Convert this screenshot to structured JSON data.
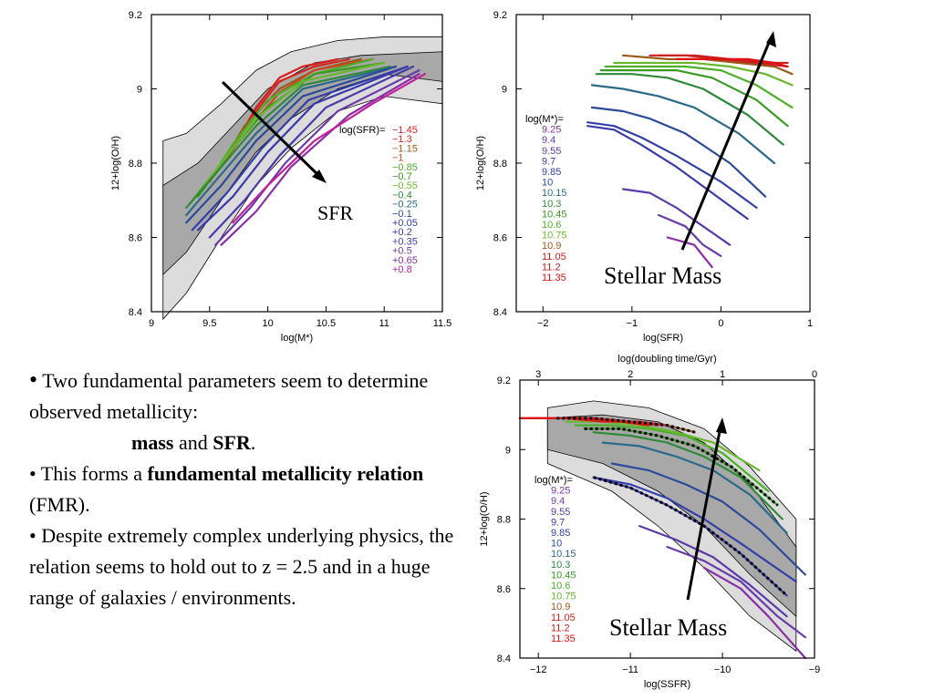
{
  "slide": {
    "bullets": {
      "b1_lead": "•",
      "b1_text": " Two fundamental parameters seem to determine observed metallicity:",
      "b1_mass": "mass",
      "b1_and": " and ",
      "b1_sfr": "SFR",
      "b1_end": ".",
      "b2_prefix": "• This forms a ",
      "b2_bold": "fundamental metallicity relation",
      "b2_suffix": " (FMR).",
      "b3": "• Despite extremely complex underlying physics, the relation seems to hold out to z = 2.5 and in a huge range of galaxies / environments."
    }
  },
  "chart_data": [
    {
      "id": "panel1",
      "type": "line",
      "xlabel": "log(M*)",
      "ylabel": "12+log(O/H)",
      "xlim": [
        9.0,
        11.5
      ],
      "ylim": [
        8.4,
        9.2
      ],
      "xticks": [
        9,
        9.5,
        10,
        10.5,
        11,
        11.5
      ],
      "yticks": [
        8.4,
        8.6,
        8.8,
        9,
        9.2
      ],
      "legend_title": "log(SFR)=",
      "legend_placement": "right",
      "annotation": "SFR",
      "series": [
        {
          "name": "−1.45",
          "color": "#d11f1f",
          "x": [
            9.7,
            9.9,
            10.1,
            10.3,
            10.6
          ],
          "y": [
            8.84,
            8.95,
            9.03,
            9.06,
            9.08
          ]
        },
        {
          "name": "−1.3",
          "color": "#d4261d",
          "x": [
            9.6,
            9.9,
            10.1,
            10.4,
            10.7
          ],
          "y": [
            8.8,
            8.94,
            9.02,
            9.06,
            9.08
          ]
        },
        {
          "name": "−1.15",
          "color": "#9a5a1a",
          "x": [
            9.55,
            9.8,
            10.1,
            10.4,
            10.8
          ],
          "y": [
            8.77,
            8.9,
            9.0,
            9.05,
            9.08
          ]
        },
        {
          "name": "−1",
          "color": "#c74a22",
          "x": [
            9.5,
            9.8,
            10.1,
            10.4,
            10.9
          ],
          "y": [
            8.75,
            8.88,
            8.99,
            9.05,
            9.08
          ]
        },
        {
          "name": "−0.85",
          "color": "#4caf2a",
          "x": [
            9.45,
            9.7,
            10.0,
            10.4,
            10.9
          ],
          "y": [
            8.73,
            8.85,
            8.97,
            9.04,
            9.08
          ]
        },
        {
          "name": "−0.7",
          "color": "#3a9a22",
          "x": [
            9.4,
            9.7,
            10.0,
            10.4,
            11.0
          ],
          "y": [
            8.71,
            8.84,
            8.95,
            9.04,
            9.07
          ]
        },
        {
          "name": "−0.55",
          "color": "#6ab82e",
          "x": [
            9.35,
            9.6,
            9.9,
            10.3,
            11.0
          ],
          "y": [
            8.7,
            8.8,
            8.92,
            9.02,
            9.07
          ]
        },
        {
          "name": "−0.4",
          "color": "#2e8a3a",
          "x": [
            9.3,
            9.6,
            9.9,
            10.3,
            11.05
          ],
          "y": [
            8.68,
            8.79,
            8.9,
            9.01,
            9.06
          ]
        },
        {
          "name": "−0.25",
          "color": "#2b6a8a",
          "x": [
            9.3,
            9.6,
            9.9,
            10.3,
            11.1
          ],
          "y": [
            8.66,
            8.77,
            8.88,
            9.0,
            9.06
          ]
        },
        {
          "name": "−0.1",
          "color": "#2a4a9a",
          "x": [
            9.3,
            9.6,
            9.9,
            10.3,
            11.1
          ],
          "y": [
            8.64,
            8.74,
            8.86,
            8.98,
            9.06
          ]
        },
        {
          "name": "+0.05",
          "color": "#3340a8",
          "x": [
            9.35,
            9.65,
            9.95,
            10.35,
            11.2
          ],
          "y": [
            8.62,
            8.72,
            8.84,
            8.97,
            9.06
          ]
        },
        {
          "name": "+0.2",
          "color": "#3a3aa8",
          "x": [
            9.4,
            9.7,
            10.0,
            10.4,
            11.2
          ],
          "y": [
            8.62,
            8.71,
            8.83,
            8.96,
            9.06
          ]
        },
        {
          "name": "+0.35",
          "color": "#4a3aa8",
          "x": [
            9.5,
            9.8,
            10.1,
            10.5,
            11.25
          ],
          "y": [
            8.6,
            8.7,
            8.82,
            8.95,
            9.06
          ]
        },
        {
          "name": "+0.5",
          "color": "#6a3aa8",
          "x": [
            9.55,
            9.85,
            10.15,
            10.6,
            11.3
          ],
          "y": [
            8.58,
            8.68,
            8.8,
            8.94,
            9.05
          ]
        },
        {
          "name": "+0.65",
          "color": "#8a2ea8",
          "x": [
            9.6,
            9.9,
            10.2,
            10.7,
            11.3
          ],
          "y": [
            8.58,
            8.67,
            8.79,
            8.93,
            9.04
          ]
        },
        {
          "name": "+0.8",
          "color": "#c0229a",
          "x": [
            9.7,
            10.0,
            10.4,
            10.9,
            11.35
          ],
          "y": [
            8.64,
            8.74,
            8.86,
            8.96,
            9.04
          ]
        }
      ]
    },
    {
      "id": "panel2",
      "type": "line",
      "xlabel": "log(SFR)",
      "ylabel": "12+log(O/H)",
      "xlim": [
        -2.3,
        1.0
      ],
      "ylim": [
        8.4,
        9.2
      ],
      "xticks": [
        -2,
        -1,
        0,
        1
      ],
      "yticks": [
        8.4,
        8.6,
        8.8,
        9,
        9.2
      ],
      "legend_title": "log(M*)=",
      "legend_placement": "top-left",
      "annotation": "Stellar Mass",
      "series": [
        {
          "name": "9.25",
          "color": "#8a2ea8",
          "x": [
            -0.6,
            -0.3,
            -0.1
          ],
          "y": [
            8.6,
            8.58,
            8.52
          ]
        },
        {
          "name": "9.4",
          "color": "#6a3aa8",
          "x": [
            -0.7,
            -0.4,
            -0.2,
            0.0
          ],
          "y": [
            8.66,
            8.63,
            8.58,
            8.55
          ]
        },
        {
          "name": "9.55",
          "color": "#5a3aa8",
          "x": [
            -1.1,
            -0.8,
            -0.5,
            -0.2,
            0.1
          ],
          "y": [
            8.73,
            8.72,
            8.68,
            8.63,
            8.58
          ]
        },
        {
          "name": "9.7",
          "color": "#3a3aa8",
          "x": [
            -1.5,
            -1.2,
            -0.9,
            -0.5,
            -0.1,
            0.3
          ],
          "y": [
            8.9,
            8.89,
            8.85,
            8.79,
            8.72,
            8.65
          ]
        },
        {
          "name": "9.85",
          "color": "#3340a8",
          "x": [
            -1.5,
            -1.2,
            -0.9,
            -0.5,
            0.0,
            0.4
          ],
          "y": [
            8.91,
            8.9,
            8.87,
            8.82,
            8.75,
            8.68
          ]
        },
        {
          "name": "10",
          "color": "#2a4a9a",
          "x": [
            -1.45,
            -1.1,
            -0.8,
            -0.4,
            0.1,
            0.5
          ],
          "y": [
            8.95,
            8.94,
            8.92,
            8.88,
            8.8,
            8.71
          ]
        },
        {
          "name": "10.15",
          "color": "#2b6a8a",
          "x": [
            -1.45,
            -1.1,
            -0.7,
            -0.3,
            0.2,
            0.6
          ],
          "y": [
            9.01,
            9.0,
            8.98,
            8.95,
            8.88,
            8.8
          ]
        },
        {
          "name": "10.3",
          "color": "#2e8a3a",
          "x": [
            -1.4,
            -1.0,
            -0.6,
            -0.2,
            0.3,
            0.7
          ],
          "y": [
            9.04,
            9.04,
            9.03,
            9.0,
            8.93,
            8.85
          ]
        },
        {
          "name": "10.45",
          "color": "#3a9a22",
          "x": [
            -1.35,
            -0.95,
            -0.5,
            -0.1,
            0.4,
            0.75
          ],
          "y": [
            9.05,
            9.05,
            9.05,
            9.03,
            8.97,
            8.9
          ]
        },
        {
          "name": "10.6",
          "color": "#4caf2a",
          "x": [
            -1.3,
            -0.9,
            -0.4,
            0.0,
            0.4,
            0.8
          ],
          "y": [
            9.06,
            9.06,
            9.06,
            9.05,
            9.01,
            8.95
          ]
        },
        {
          "name": "10.75",
          "color": "#6ab82e",
          "x": [
            -1.2,
            -0.8,
            -0.3,
            0.1,
            0.5,
            0.8
          ],
          "y": [
            9.07,
            9.07,
            9.07,
            9.06,
            9.04,
            9.01
          ]
        },
        {
          "name": "10.9",
          "color": "#9a5a1a",
          "x": [
            -1.1,
            -0.6,
            -0.2,
            0.2,
            0.6,
            0.8
          ],
          "y": [
            9.09,
            9.08,
            9.08,
            9.07,
            9.06,
            9.04
          ]
        },
        {
          "name": "11.05",
          "color": "#d11f1f",
          "x": [
            -0.8,
            -0.4,
            0.0,
            0.4,
            0.75
          ],
          "y": [
            9.09,
            9.09,
            9.08,
            9.07,
            9.06
          ]
        },
        {
          "name": "11.2",
          "color": "#c82020",
          "x": [
            -0.7,
            -0.3,
            0.1,
            0.5,
            0.75
          ],
          "y": [
            9.09,
            9.09,
            9.08,
            9.07,
            9.07
          ]
        },
        {
          "name": "11.35",
          "color": "#e01010",
          "x": [
            -0.5,
            -0.1,
            0.3,
            0.6,
            0.75
          ],
          "y": [
            9.08,
            9.08,
            9.08,
            9.07,
            9.06
          ]
        }
      ]
    },
    {
      "id": "panel3",
      "type": "line",
      "xlabel": "log(SSFR)",
      "ylabel": "12+log(O/H)",
      "top_xlabel": "log(doubling time/Gyr)",
      "xlim": [
        -12.2,
        -9.0
      ],
      "ylim": [
        8.4,
        9.2
      ],
      "xticks": [
        -12,
        -11,
        -10,
        -9
      ],
      "yticks": [
        8.4,
        8.6,
        8.8,
        9,
        9.2
      ],
      "top_ticks": [
        {
          "label": "3",
          "at": -12.0
        },
        {
          "label": "2",
          "at": -11.0
        },
        {
          "label": "1",
          "at": -10.0
        },
        {
          "label": "0",
          "at": -9.0
        }
      ],
      "legend_title": "log(M*)=",
      "legend_placement": "left",
      "annotation": "Stellar Mass",
      "series": [
        {
          "name": "9.25",
          "color": "#8a2ea8",
          "x": [
            -10.2,
            -9.8,
            -9.5,
            -9.1
          ],
          "y": [
            8.66,
            8.6,
            8.52,
            8.4
          ]
        },
        {
          "name": "9.4",
          "color": "#6a3aa8",
          "x": [
            -10.6,
            -10.2,
            -9.8,
            -9.4,
            -9.1
          ],
          "y": [
            8.72,
            8.68,
            8.62,
            8.52,
            8.46
          ]
        },
        {
          "name": "9.55",
          "color": "#5a3aa8",
          "x": [
            -10.9,
            -10.5,
            -10.1,
            -9.7,
            -9.3
          ],
          "y": [
            8.78,
            8.74,
            8.69,
            8.61,
            8.52
          ]
        },
        {
          "name": "9.7",
          "color": "#3a3aa8",
          "x": [
            -11.4,
            -11.0,
            -10.6,
            -10.2,
            -9.8,
            -9.3
          ],
          "y": [
            8.92,
            8.89,
            8.84,
            8.78,
            8.7,
            8.58
          ]
        },
        {
          "name": "9.85",
          "color": "#3340a8",
          "x": [
            -11.4,
            -11.0,
            -10.6,
            -10.2,
            -9.8,
            -9.2
          ],
          "y": [
            8.92,
            8.9,
            8.86,
            8.8,
            8.73,
            8.62
          ]
        },
        {
          "name": "10",
          "color": "#2a4a9a",
          "x": [
            -11.2,
            -10.8,
            -10.4,
            -10.0,
            -9.6,
            -9.1
          ],
          "y": [
            8.96,
            8.94,
            8.9,
            8.85,
            8.77,
            8.64
          ]
        },
        {
          "name": "10.15",
          "color": "#2b6a8a",
          "x": [
            -11.3,
            -10.9,
            -10.5,
            -10.1,
            -9.7,
            -9.3
          ],
          "y": [
            9.02,
            9.01,
            8.98,
            8.94,
            8.87,
            8.76
          ]
        },
        {
          "name": "10.3",
          "color": "#2e8a3a",
          "x": [
            -11.4,
            -11.0,
            -10.6,
            -10.2,
            -9.8,
            -9.35
          ],
          "y": [
            9.05,
            9.04,
            9.02,
            8.98,
            8.92,
            8.8
          ]
        },
        {
          "name": "10.45",
          "color": "#3a9a22",
          "x": [
            -11.5,
            -11.1,
            -10.7,
            -10.3,
            -9.9,
            -9.4
          ],
          "y": [
            9.06,
            9.06,
            9.04,
            9.01,
            8.95,
            8.84
          ]
        },
        {
          "name": "10.6",
          "color": "#4caf2a",
          "x": [
            -11.6,
            -11.2,
            -10.8,
            -10.4,
            -10.0,
            -9.5
          ],
          "y": [
            9.07,
            9.07,
            9.06,
            9.04,
            8.99,
            8.88
          ]
        },
        {
          "name": "10.75",
          "color": "#6ab82e",
          "x": [
            -11.7,
            -11.3,
            -10.9,
            -10.5,
            -10.1,
            -9.6
          ],
          "y": [
            9.08,
            9.08,
            9.07,
            9.05,
            9.02,
            8.94
          ]
        },
        {
          "name": "10.9",
          "color": "#9a5a1a",
          "x": [
            -11.8,
            -11.4,
            -11.0,
            -10.6,
            -10.3
          ],
          "y": [
            9.09,
            9.09,
            9.08,
            9.07,
            9.05
          ]
        },
        {
          "name": "11.05",
          "color": "#d11f1f",
          "x": [
            -12.1,
            -11.7,
            -11.3,
            -10.9,
            -10.6
          ],
          "y": [
            9.09,
            9.09,
            9.08,
            9.08,
            9.07
          ]
        },
        {
          "name": "11.2",
          "color": "#c82020",
          "x": [
            -12.2,
            -11.8,
            -11.4,
            -11.0,
            -10.7
          ],
          "y": [
            9.09,
            9.09,
            9.09,
            9.08,
            9.07
          ]
        },
        {
          "name": "11.35",
          "color": "#e01010",
          "x": [
            -12.2,
            -11.9,
            -11.5,
            -11.1,
            -10.8
          ],
          "y": [
            9.09,
            9.09,
            9.09,
            9.08,
            9.07
          ]
        }
      ]
    }
  ]
}
